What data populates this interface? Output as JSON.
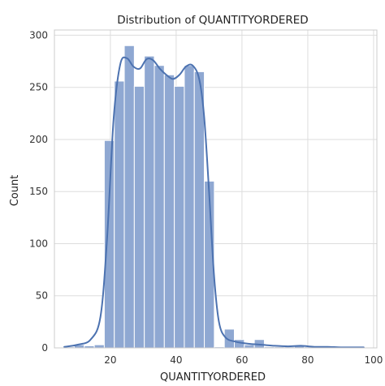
{
  "chart_data": {
    "type": "bar",
    "subtype": "histogram_with_kde",
    "title": "Distribution of QUANTITYORDERED",
    "xlabel": "QUANTITYORDERED",
    "ylabel": "Count",
    "xlim": [
      3,
      101
    ],
    "ylim": [
      0,
      305
    ],
    "xticks": [
      20,
      40,
      60,
      80,
      100
    ],
    "yticks": [
      0,
      50,
      100,
      150,
      200,
      250,
      300
    ],
    "grid": true,
    "bar_color": "#8FA8D2",
    "kde_color": "#4C72B0",
    "bins": [
      {
        "x0": 6.0,
        "x1": 9.04,
        "count": 1
      },
      {
        "x0": 9.04,
        "x1": 12.08,
        "count": 3
      },
      {
        "x0": 12.08,
        "x1": 15.12,
        "count": 2
      },
      {
        "x0": 15.12,
        "x1": 18.16,
        "count": 3
      },
      {
        "x0": 18.16,
        "x1": 21.2,
        "count": 199
      },
      {
        "x0": 21.2,
        "x1": 24.24,
        "count": 256
      },
      {
        "x0": 24.24,
        "x1": 27.28,
        "count": 290
      },
      {
        "x0": 27.28,
        "x1": 30.32,
        "count": 251
      },
      {
        "x0": 30.32,
        "x1": 33.36,
        "count": 280
      },
      {
        "x0": 33.36,
        "x1": 36.4,
        "count": 271
      },
      {
        "x0": 36.4,
        "x1": 39.44,
        "count": 262
      },
      {
        "x0": 39.44,
        "x1": 42.48,
        "count": 251
      },
      {
        "x0": 42.48,
        "x1": 45.52,
        "count": 271
      },
      {
        "x0": 45.52,
        "x1": 48.56,
        "count": 265
      },
      {
        "x0": 48.56,
        "x1": 51.6,
        "count": 160
      },
      {
        "x0": 51.6,
        "x1": 54.64,
        "count": 1
      },
      {
        "x0": 54.64,
        "x1": 57.68,
        "count": 18
      },
      {
        "x0": 57.68,
        "x1": 60.72,
        "count": 8
      },
      {
        "x0": 60.72,
        "x1": 63.76,
        "count": 3
      },
      {
        "x0": 63.76,
        "x1": 66.8,
        "count": 8
      },
      {
        "x0": 66.8,
        "x1": 69.84,
        "count": 1
      },
      {
        "x0": 69.84,
        "x1": 72.88,
        "count": 1
      },
      {
        "x0": 72.88,
        "x1": 75.92,
        "count": 1
      },
      {
        "x0": 75.92,
        "x1": 78.96,
        "count": 2
      },
      {
        "x0": 78.96,
        "x1": 82.0,
        "count": 1
      },
      {
        "x0": 82.0,
        "x1": 85.04,
        "count": 1
      },
      {
        "x0": 85.04,
        "x1": 88.08,
        "count": 1
      },
      {
        "x0": 88.08,
        "x1": 91.12,
        "count": 0
      },
      {
        "x0": 91.12,
        "x1": 94.16,
        "count": 1
      },
      {
        "x0": 94.16,
        "x1": 97.2,
        "count": 1
      }
    ],
    "kde": {
      "x": [
        6,
        10,
        14,
        17,
        19,
        21,
        23,
        25,
        27,
        29,
        31,
        33,
        35,
        37,
        39,
        41,
        43,
        45,
        47,
        48.5,
        50,
        51.5,
        53,
        55,
        58,
        62,
        66,
        70,
        74,
        78,
        82,
        86,
        90,
        94,
        97
      ],
      "y": [
        1,
        3,
        8,
        30,
        105,
        220,
        272,
        278,
        270,
        268,
        277,
        276,
        268,
        262,
        258,
        262,
        270,
        271,
        258,
        222,
        150,
        70,
        25,
        10,
        6,
        4,
        3,
        2,
        1.5,
        2,
        1,
        1,
        0.5,
        0.5,
        0.5
      ]
    }
  }
}
